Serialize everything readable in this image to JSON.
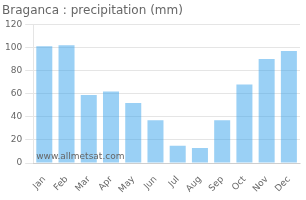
{
  "chart_data": {
    "type": "bar",
    "title": "Braganca : precipitation (mm)",
    "categories": [
      "Jan",
      "Feb",
      "Mar",
      "Apr",
      "May",
      "Jun",
      "Jul",
      "Aug",
      "Sep",
      "Oct",
      "Nov",
      "Dec"
    ],
    "values": [
      101,
      102,
      59,
      62,
      52,
      37,
      15,
      13,
      37,
      68,
      90,
      97
    ],
    "ylim": [
      0,
      120
    ],
    "yticks": [
      0,
      20,
      40,
      60,
      80,
      100,
      120
    ],
    "grid": true,
    "annotation": "www.allmetsat.com"
  }
}
